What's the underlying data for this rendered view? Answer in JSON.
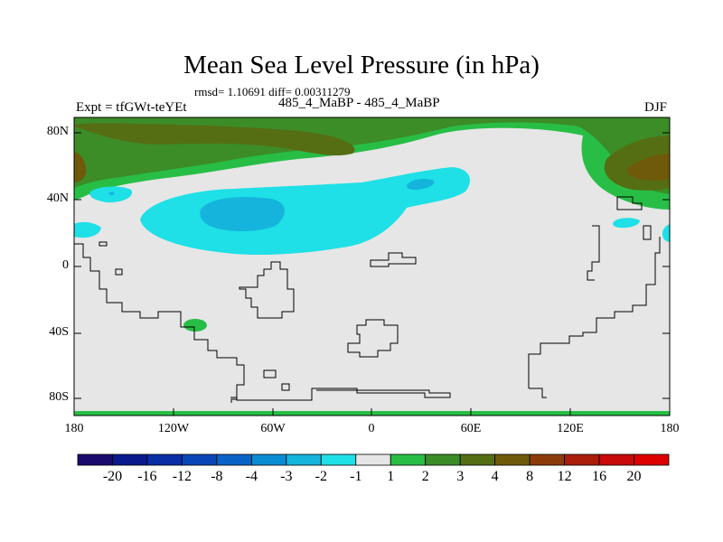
{
  "title": "Mean Sea Level Pressure (in hPa)",
  "stats": "rmsd= 1.10691 diff= 0.00311279",
  "left_label": "Expt = tfGWt-teYEt",
  "center_label": "485_4_MaBP - 485_4_MaBP",
  "right_label": "DJF",
  "axes": {
    "y_ticks": [
      "80N",
      "40N",
      "0",
      "40S",
      "80S"
    ],
    "x_ticks": [
      "180",
      "120W",
      "60W",
      "0",
      "60E",
      "120E",
      "180"
    ]
  },
  "colorbar": {
    "labels": [
      "-20",
      "-16",
      "-12",
      "-8",
      "-4",
      "-3",
      "-2",
      "-1",
      "1",
      "2",
      "3",
      "4",
      "8",
      "12",
      "16",
      "20"
    ],
    "colors": [
      "#1a0a6e",
      "#0a1a8c",
      "#0a2ea6",
      "#0a46b8",
      "#0a64c8",
      "#0a8cd2",
      "#14b4dc",
      "#1ee0e6",
      "#e6e6e6",
      "#28be46",
      "#3c8c28",
      "#556e14",
      "#6e5a0a",
      "#8c3c0a",
      "#aa1e0a",
      "#c80a0a",
      "#dc0000"
    ]
  }
}
